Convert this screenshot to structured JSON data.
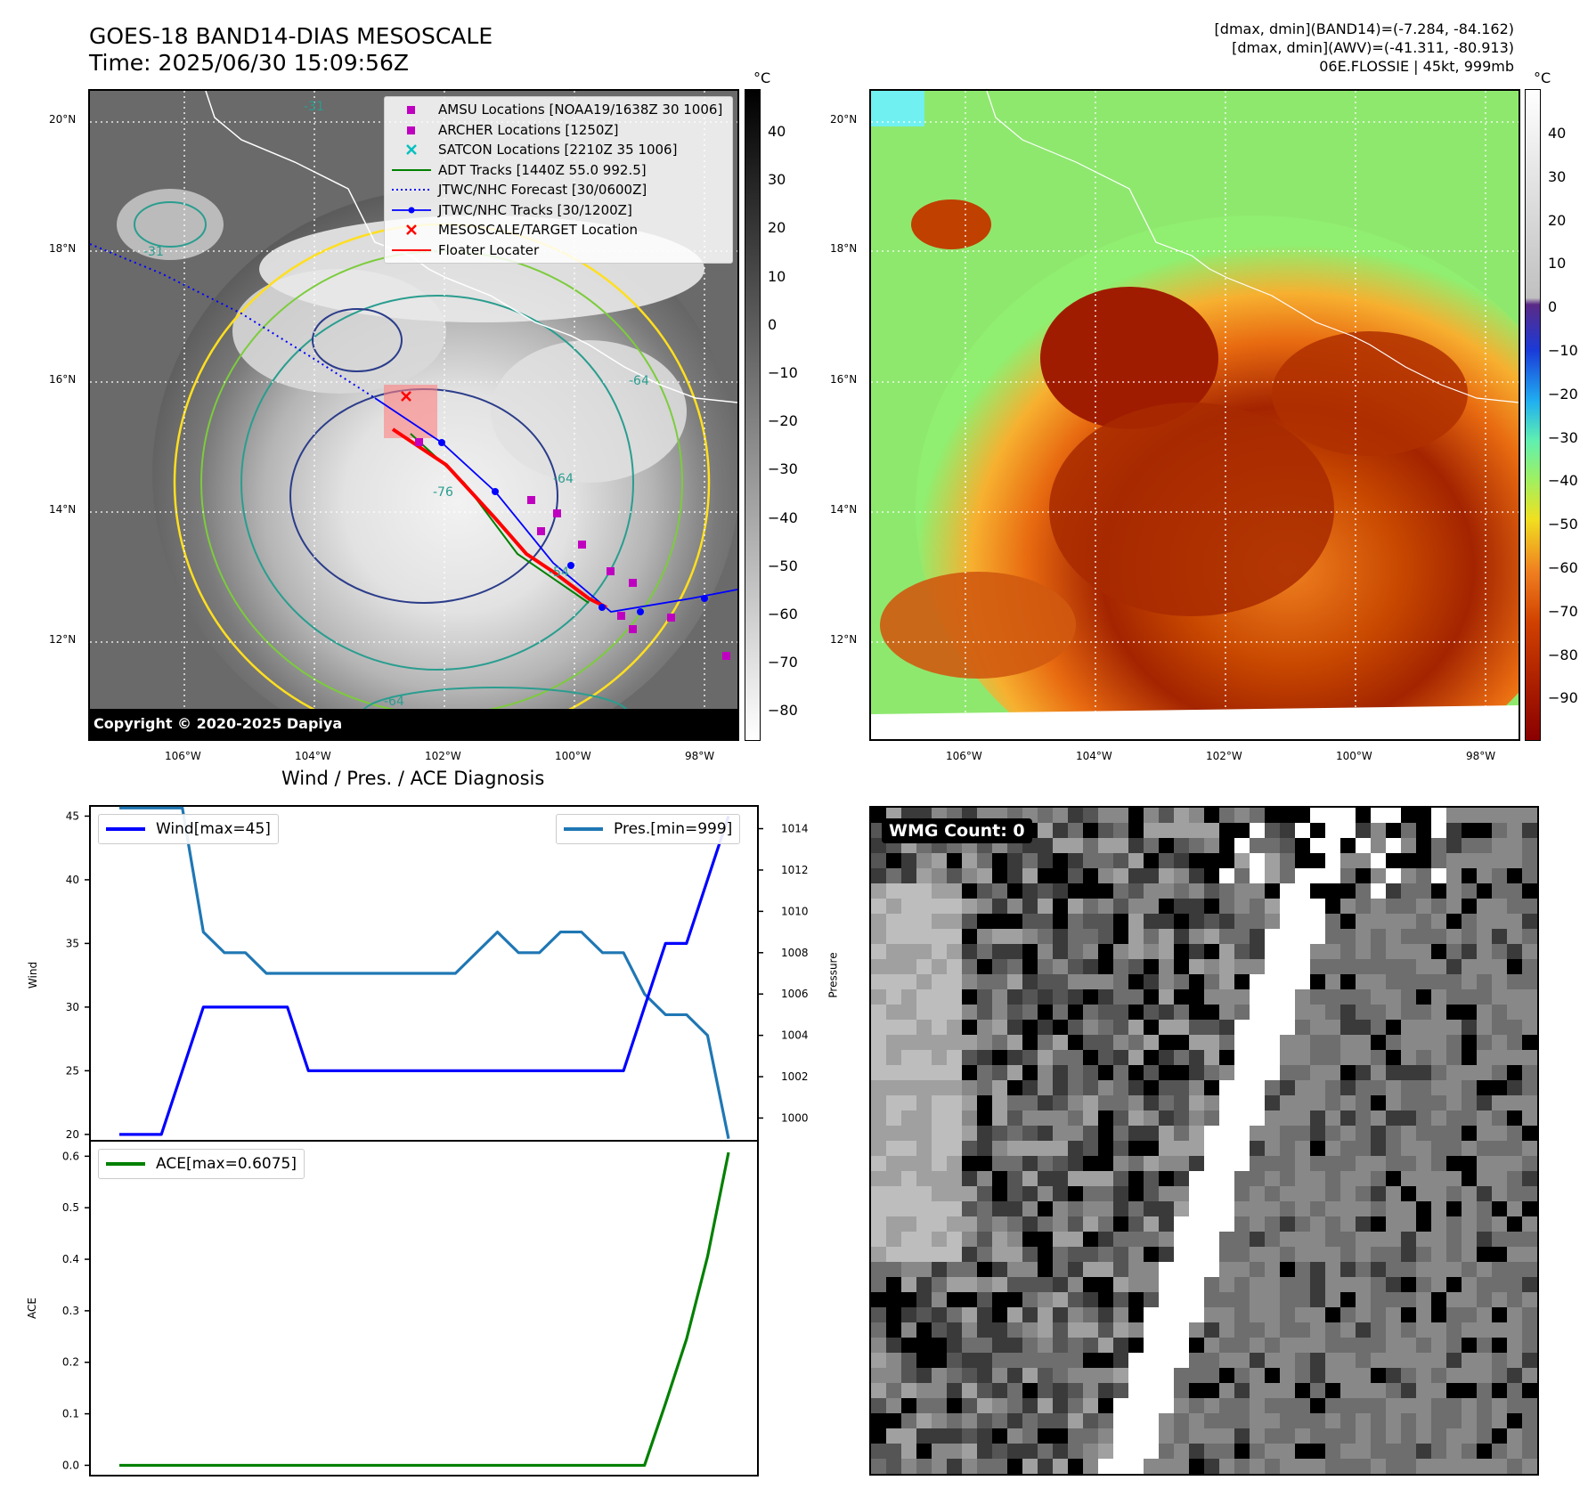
{
  "header": {
    "title_line1": "GOES-18 BAND14-DIAS MESOSCALE",
    "title_line2": "Time: 2025/06/30 15:09:56Z",
    "right_line1": "[dmax, dmin](BAND14)=(-7.284, -84.162)",
    "right_line2": "[dmax, dmin](AWV)=(-41.311, -80.913)",
    "right_line3": "06E.FLOSSIE | 45kt, 999mb"
  },
  "map": {
    "lat_labels": [
      "20°N",
      "18°N",
      "16°N",
      "14°N",
      "12°N"
    ],
    "lon_labels": [
      "106°W",
      "104°W",
      "102°W",
      "100°W",
      "98°W"
    ],
    "copyright": "Copyright © 2020-2025 Dapiya",
    "colorbar_unit": "°C",
    "left_colorbar_ticks": [
      "40",
      "30",
      "20",
      "10",
      "0",
      "−10",
      "−20",
      "−30",
      "−40",
      "−50",
      "−60",
      "−70",
      "−80"
    ],
    "right_colorbar_ticks": [
      "40",
      "30",
      "20",
      "10",
      "0",
      "−10",
      "−20",
      "−30",
      "−40",
      "−50",
      "−60",
      "−70",
      "−80",
      "−90"
    ],
    "legend": [
      {
        "label": "AMSU Locations [NOAA19/1638Z 30 1006]",
        "color": "#c000c0",
        "kind": "square"
      },
      {
        "label": "ARCHER Locations [1250Z]",
        "color": "#c000c0",
        "kind": "square"
      },
      {
        "label": "SATCON Locations [2210Z 35 1006]",
        "color": "#00c0c0",
        "kind": "x"
      },
      {
        "label": "ADT Tracks [1440Z 55.0 992.5]",
        "color": "#008000",
        "kind": "line"
      },
      {
        "label": "JTWC/NHC Forecast [30/0600Z]",
        "color": "#0000ff",
        "kind": "dotted"
      },
      {
        "label": "JTWC/NHC Tracks [30/1200Z]",
        "color": "#0000ff",
        "kind": "linedot"
      },
      {
        "label": "MESOSCALE/TARGET Location",
        "color": "#ff0000",
        "kind": "x"
      },
      {
        "label": "Floater Locater",
        "color": "#ff0000",
        "kind": "line"
      }
    ],
    "contour_labels": [
      "-31",
      "-31",
      "-64",
      "-64",
      "-76",
      "-54",
      "-64"
    ]
  },
  "chart_data": [
    {
      "type": "line",
      "title": "Wind / Pres. / ACE Diagnosis",
      "ylabel": "Wind",
      "ylim": [
        19.5,
        45.8
      ],
      "yticks": [
        20,
        25,
        30,
        35,
        40,
        45
      ],
      "x": [
        0,
        1,
        2,
        3,
        4,
        5,
        6,
        7,
        8,
        9,
        10,
        11,
        12,
        13,
        14,
        15,
        16,
        17,
        18,
        19,
        20,
        21,
        22,
        23,
        24,
        25,
        26,
        27,
        28,
        29
      ],
      "series": [
        {
          "name": "Wind[max=45]",
          "color": "#0000ff",
          "axis": "left",
          "values": [
            20,
            20,
            20,
            25,
            30,
            30,
            30,
            30,
            30,
            25,
            25,
            25,
            25,
            25,
            25,
            25,
            25,
            25,
            25,
            25,
            25,
            25,
            25,
            25,
            25,
            30,
            35,
            35,
            40,
            45
          ]
        }
      ]
    },
    {
      "type": "line",
      "ylabel": "Pressure",
      "ylim": [
        998.9,
        1015.1
      ],
      "yticks": [
        1000,
        1002,
        1004,
        1006,
        1008,
        1010,
        1012,
        1014
      ],
      "x": [
        0,
        1,
        2,
        3,
        4,
        5,
        6,
        7,
        8,
        9,
        10,
        11,
        12,
        13,
        14,
        15,
        16,
        17,
        18,
        19,
        20,
        21,
        22,
        23,
        24,
        25,
        26,
        27,
        28,
        29
      ],
      "series": [
        {
          "name": "Pres.[min=999]",
          "color": "#1f77b4",
          "axis": "right",
          "values": [
            1015,
            1015,
            1015,
            1015,
            1009,
            1008,
            1008,
            1007,
            1007,
            1007,
            1007,
            1007,
            1007,
            1007,
            1007,
            1007,
            1007,
            1008,
            1009,
            1008,
            1008,
            1009,
            1009,
            1008,
            1008,
            1006,
            1005,
            1005,
            1004,
            999
          ]
        }
      ]
    },
    {
      "type": "line",
      "ylabel": "ACE",
      "ylim": [
        -0.02,
        0.63
      ],
      "yticks": [
        0.0,
        0.1,
        0.2,
        0.3,
        0.4,
        0.5,
        0.6
      ],
      "ytick_labels": [
        "0.0",
        "0.1",
        "0.2",
        "0.3",
        "0.4",
        "0.5",
        "0.6"
      ],
      "x": [
        0,
        1,
        2,
        3,
        4,
        5,
        6,
        7,
        8,
        9,
        10,
        11,
        12,
        13,
        14,
        15,
        16,
        17,
        18,
        19,
        20,
        21,
        22,
        23,
        24,
        25,
        26,
        27,
        28,
        29
      ],
      "series": [
        {
          "name": "ACE[max=0.6075]",
          "color": "#008000",
          "axis": "left",
          "values": [
            0,
            0,
            0,
            0,
            0,
            0,
            0,
            0,
            0,
            0,
            0,
            0,
            0,
            0,
            0,
            0,
            0,
            0,
            0,
            0,
            0,
            0,
            0,
            0,
            0,
            0,
            0.12,
            0.245,
            0.405,
            0.6075
          ]
        }
      ]
    }
  ],
  "wmg": {
    "label": "WMG Count: 0"
  }
}
